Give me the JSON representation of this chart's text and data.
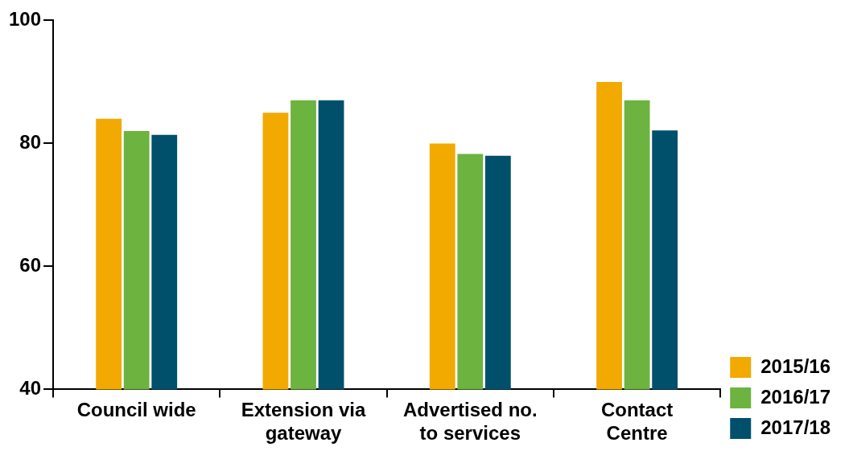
{
  "chart_data": {
    "type": "bar",
    "categories": [
      "Council wide",
      "Extension via gateway",
      "Advertised no. to services",
      "Contact Centre"
    ],
    "series": [
      {
        "name": "2015/16",
        "color": "#f2a900",
        "values": [
          84,
          85,
          80,
          90
        ]
      },
      {
        "name": "2016/17",
        "color": "#6db33f",
        "values": [
          82,
          87,
          78.3,
          87
        ]
      },
      {
        "name": "2017/18",
        "color": "#00506b",
        "values": [
          81.4,
          87,
          78,
          82.1
        ]
      }
    ],
    "ylim": [
      40,
      100
    ],
    "yticks": [
      40,
      60,
      80,
      100
    ],
    "grid": false,
    "legend": "right"
  }
}
